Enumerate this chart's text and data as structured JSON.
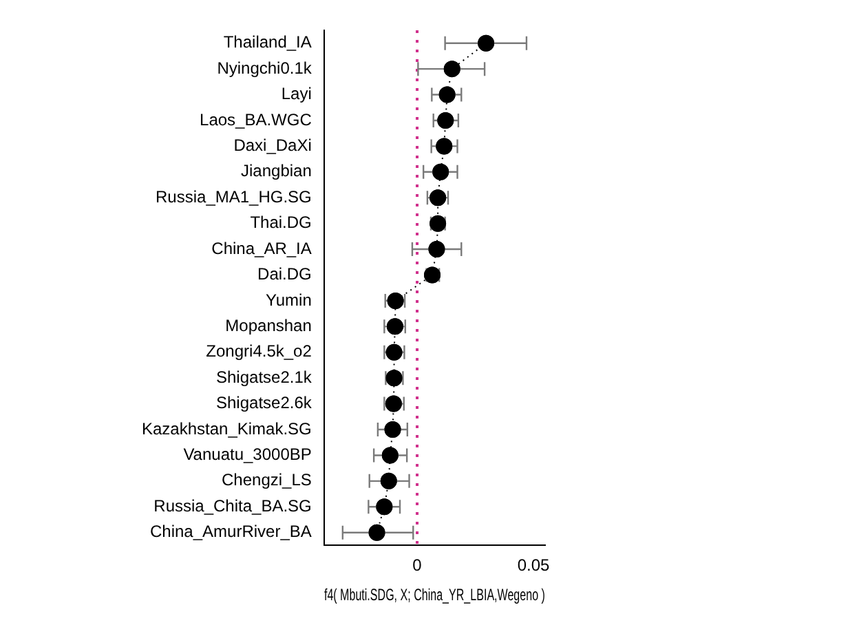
{
  "chart_data": {
    "type": "line",
    "orientation": "horizontal",
    "xlabel": "f4( Mbuti.SDG, X; China_YR_LBIA,Wegeno )",
    "categories": [
      "Thailand_IA",
      "Nyingchi0.1k",
      "Layi",
      "Laos_BA.WGC",
      "Daxi_DaXi",
      "Jiangbian",
      "Russia_MA1_HG.SG",
      "Thai.DG",
      "China_AR_IA",
      "Dai.DG",
      "Yumin",
      "Mopanshan",
      "Zongri4.5k_o2",
      "Shigatse2.1k",
      "Shigatse2.6k",
      "Kazakhstan_Kimak.SG",
      "Vanuatu_3000BP",
      "Chengzi_LS",
      "Russia_Chita_BA.SG",
      "China_AmurRiver_BA"
    ],
    "series": [
      {
        "color": "#000000",
        "values": [
          0.0296,
          0.015,
          0.0129,
          0.0122,
          0.0116,
          0.0101,
          0.0089,
          0.0089,
          0.0084,
          0.0065,
          -0.0093,
          -0.0095,
          -0.0099,
          -0.0099,
          -0.0101,
          -0.0105,
          -0.0116,
          -0.0122,
          -0.0141,
          -0.0173
        ],
        "errors": [
          [
            0.012,
            0.047
          ],
          [
            0.0004,
            0.029
          ],
          [
            0.0063,
            0.019
          ],
          [
            0.007,
            0.0177
          ],
          [
            0.0061,
            0.0173
          ],
          [
            0.0027,
            0.0173
          ],
          [
            0.0044,
            0.0133
          ],
          [
            0.0059,
            0.012
          ],
          [
            -0.0021,
            0.019
          ],
          [
            0.004,
            0.0095
          ],
          [
            -0.0137,
            -0.0053
          ],
          [
            -0.0141,
            -0.0051
          ],
          [
            -0.0141,
            -0.0055
          ],
          [
            -0.0135,
            -0.0061
          ],
          [
            -0.0141,
            -0.0057
          ],
          [
            -0.0169,
            -0.0042
          ],
          [
            -0.0186,
            -0.0044
          ],
          [
            -0.0205,
            -0.0034
          ],
          [
            -0.0209,
            -0.0074
          ],
          [
            -0.032,
            -0.0017
          ]
        ]
      }
    ],
    "xlim": [
      -0.04,
      0.055
    ],
    "xticks": [
      0,
      0.05
    ],
    "ref_lines": [
      {
        "axis": "x",
        "value": 0,
        "color": "#d0308c",
        "line_style": "dotted"
      }
    ],
    "marker": "circle",
    "line_style": "dotted",
    "grid": false,
    "legend": false
  }
}
